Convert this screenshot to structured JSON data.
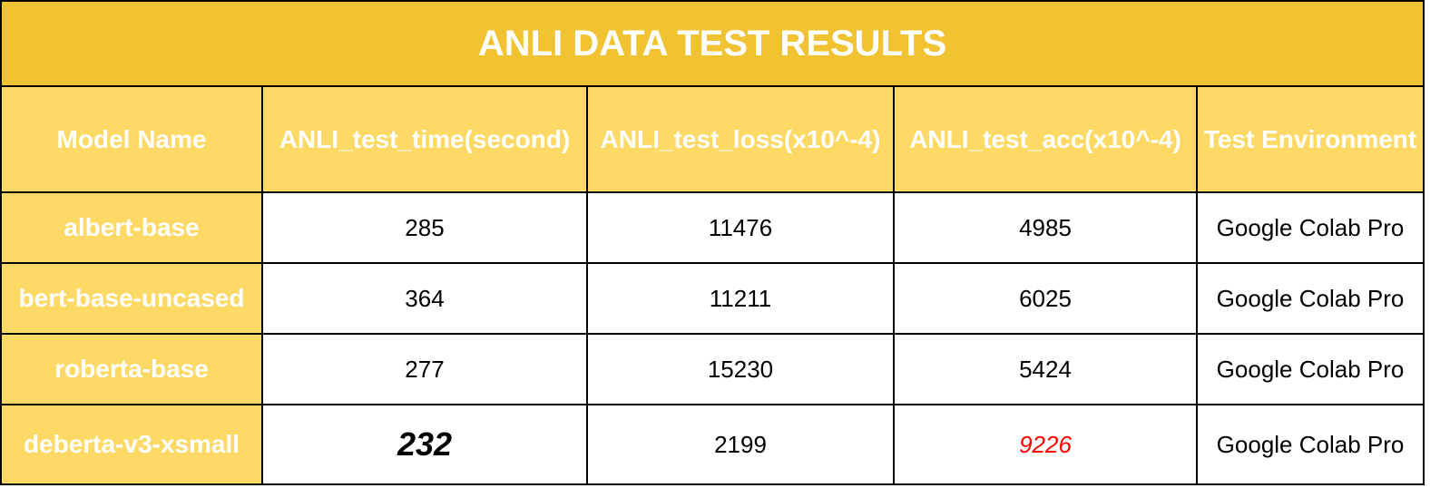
{
  "chart_data": {
    "type": "table",
    "title": "ANLI DATA TEST RESULTS",
    "columns": [
      "Model Name",
      "ANLI_test_time(second)",
      "ANLI_test_loss(x10^-4)",
      "ANLI_test_acc(x10^-4)",
      "Test Environment"
    ],
    "rows": [
      {
        "model": "albert-base",
        "time": "285",
        "loss": "11476",
        "acc": "4985",
        "env": "Google Colab Pro"
      },
      {
        "model": "bert-base-uncased",
        "time": "364",
        "loss": "11211",
        "acc": "6025",
        "env": "Google Colab Pro"
      },
      {
        "model": "roberta-base",
        "time": "277",
        "loss": "15230",
        "acc": "5424",
        "env": "Google Colab Pro"
      },
      {
        "model": "deberta-v3-xsmall",
        "time": "232",
        "loss": "2199",
        "acc": "9226",
        "env": "Google Colab Pro"
      }
    ],
    "highlights": {
      "best_time": {
        "row": 3,
        "column": "time",
        "style": "bold italic"
      },
      "best_acc": {
        "row": 3,
        "column": "acc",
        "style": "italic",
        "color": "#FF0000"
      }
    }
  },
  "colors": {
    "title_background": "#F1C232",
    "header_background": "#FFD966",
    "header_text": "#FFFFFF",
    "border": "#000000",
    "highlight_red": "#FF0000"
  }
}
